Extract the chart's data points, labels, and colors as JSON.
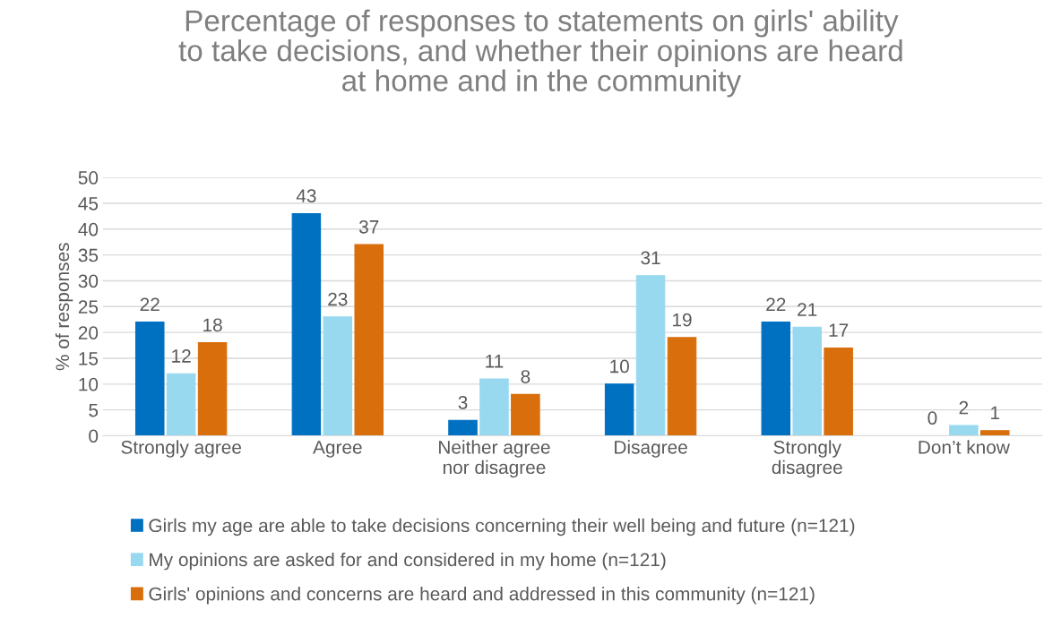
{
  "chart_data": {
    "type": "bar",
    "title": "Percentage of responses to statements on girls' ability\nto take decisions, and whether their opinions are heard\nat home and in the community",
    "ylabel": "% of responses",
    "categories": [
      "Strongly agree",
      "Agree",
      "Neither agree\nnor disagree",
      "Disagree",
      "Strongly\ndisagree",
      "Don’t know"
    ],
    "series": [
      {
        "name": "Girls my age are able to take decisions concerning their well being and future (n=121)",
        "color": "#0070c0",
        "values": [
          22,
          43,
          3,
          10,
          22,
          0
        ]
      },
      {
        "name": "My opinions are asked for and considered in my home (n=121)",
        "color": "#99d9f0",
        "values": [
          12,
          23,
          11,
          31,
          21,
          2
        ]
      },
      {
        "name": "Girls' opinions and concerns are heard and addressed in this community (n=121)",
        "color": "#d86f0c",
        "values": [
          18,
          37,
          8,
          19,
          17,
          1
        ]
      }
    ],
    "ylim": [
      0,
      50
    ],
    "yticks": [
      0,
      5,
      10,
      15,
      20,
      25,
      30,
      35,
      40,
      45,
      50
    ],
    "grid": "y",
    "legend": "bottom",
    "data_labels": true
  }
}
